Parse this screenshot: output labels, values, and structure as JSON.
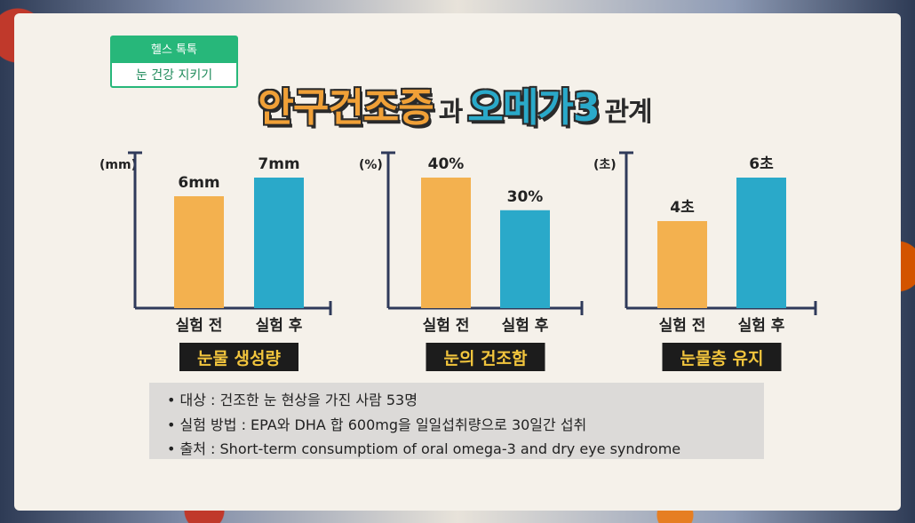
{
  "tag": {
    "top": "헬스 톡톡",
    "bottom": "눈 건강 지키기"
  },
  "headline": {
    "part1": "안구건조증",
    "part2": "과",
    "part3": "오메가3",
    "part4": "관계"
  },
  "colors": {
    "before": "#f3b14f",
    "after": "#2aa9c9",
    "axis": "#2f3a5a",
    "caption_bg": "#1c1c1c",
    "caption_fg": "#f2c53d"
  },
  "chart_data": [
    {
      "type": "bar",
      "unit": "(mm)",
      "categories": [
        "실험 전",
        "실험 후"
      ],
      "values": [
        6,
        7
      ],
      "data_labels": [
        "6mm",
        "7mm"
      ],
      "caption": "눈물 생성량"
    },
    {
      "type": "bar",
      "unit": "(%)",
      "categories": [
        "실험 전",
        "실험 후"
      ],
      "values": [
        40,
        30
      ],
      "data_labels": [
        "40%",
        "30%"
      ],
      "caption": "눈의 건조함"
    },
    {
      "type": "bar",
      "unit": "(초)",
      "categories": [
        "실험 전",
        "실험 후"
      ],
      "values": [
        4,
        6
      ],
      "data_labels": [
        "4초",
        "6초"
      ],
      "caption": "눈물층 유지"
    }
  ],
  "info": [
    "• 대상 : 건조한 눈 현상을 가진 사람 53명",
    "• 실험 방법 : EPA와 DHA 합 600mg을 일일섭취량으로 30일간 섭취",
    "• 출처 : Short-term consumptiom of oral omega-3 and dry eye syndrome"
  ]
}
